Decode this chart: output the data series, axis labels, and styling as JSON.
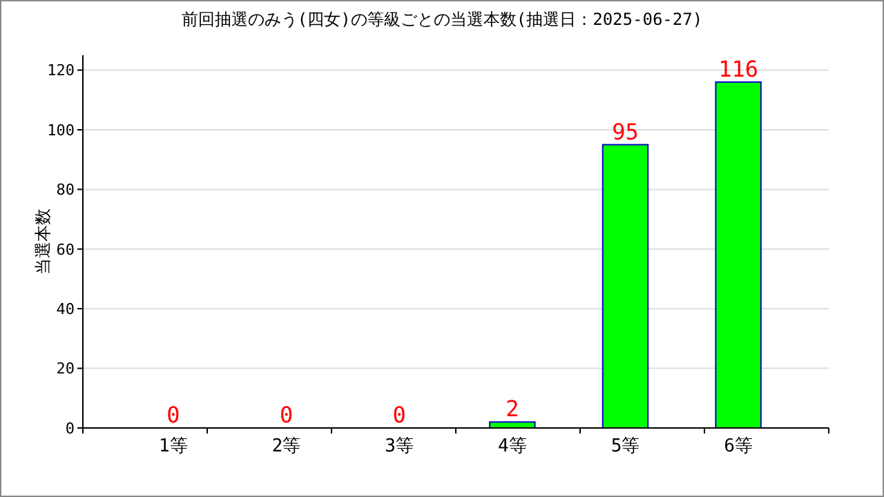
{
  "chart_data": {
    "type": "bar",
    "title": "前回抽選のみう(四女)の等級ごとの当選本数(抽選日：2025-06-27)",
    "ylabel": "当選本数",
    "categories": [
      "1等",
      "2等",
      "3等",
      "4等",
      "5等",
      "6等"
    ],
    "values": [
      0,
      0,
      0,
      2,
      95,
      116
    ],
    "color": "#00ff00",
    "ylim": [
      0,
      125
    ],
    "yticks": [
      0,
      20,
      40,
      60,
      80,
      100,
      120
    ],
    "grid": "y",
    "data_labels": true
  }
}
